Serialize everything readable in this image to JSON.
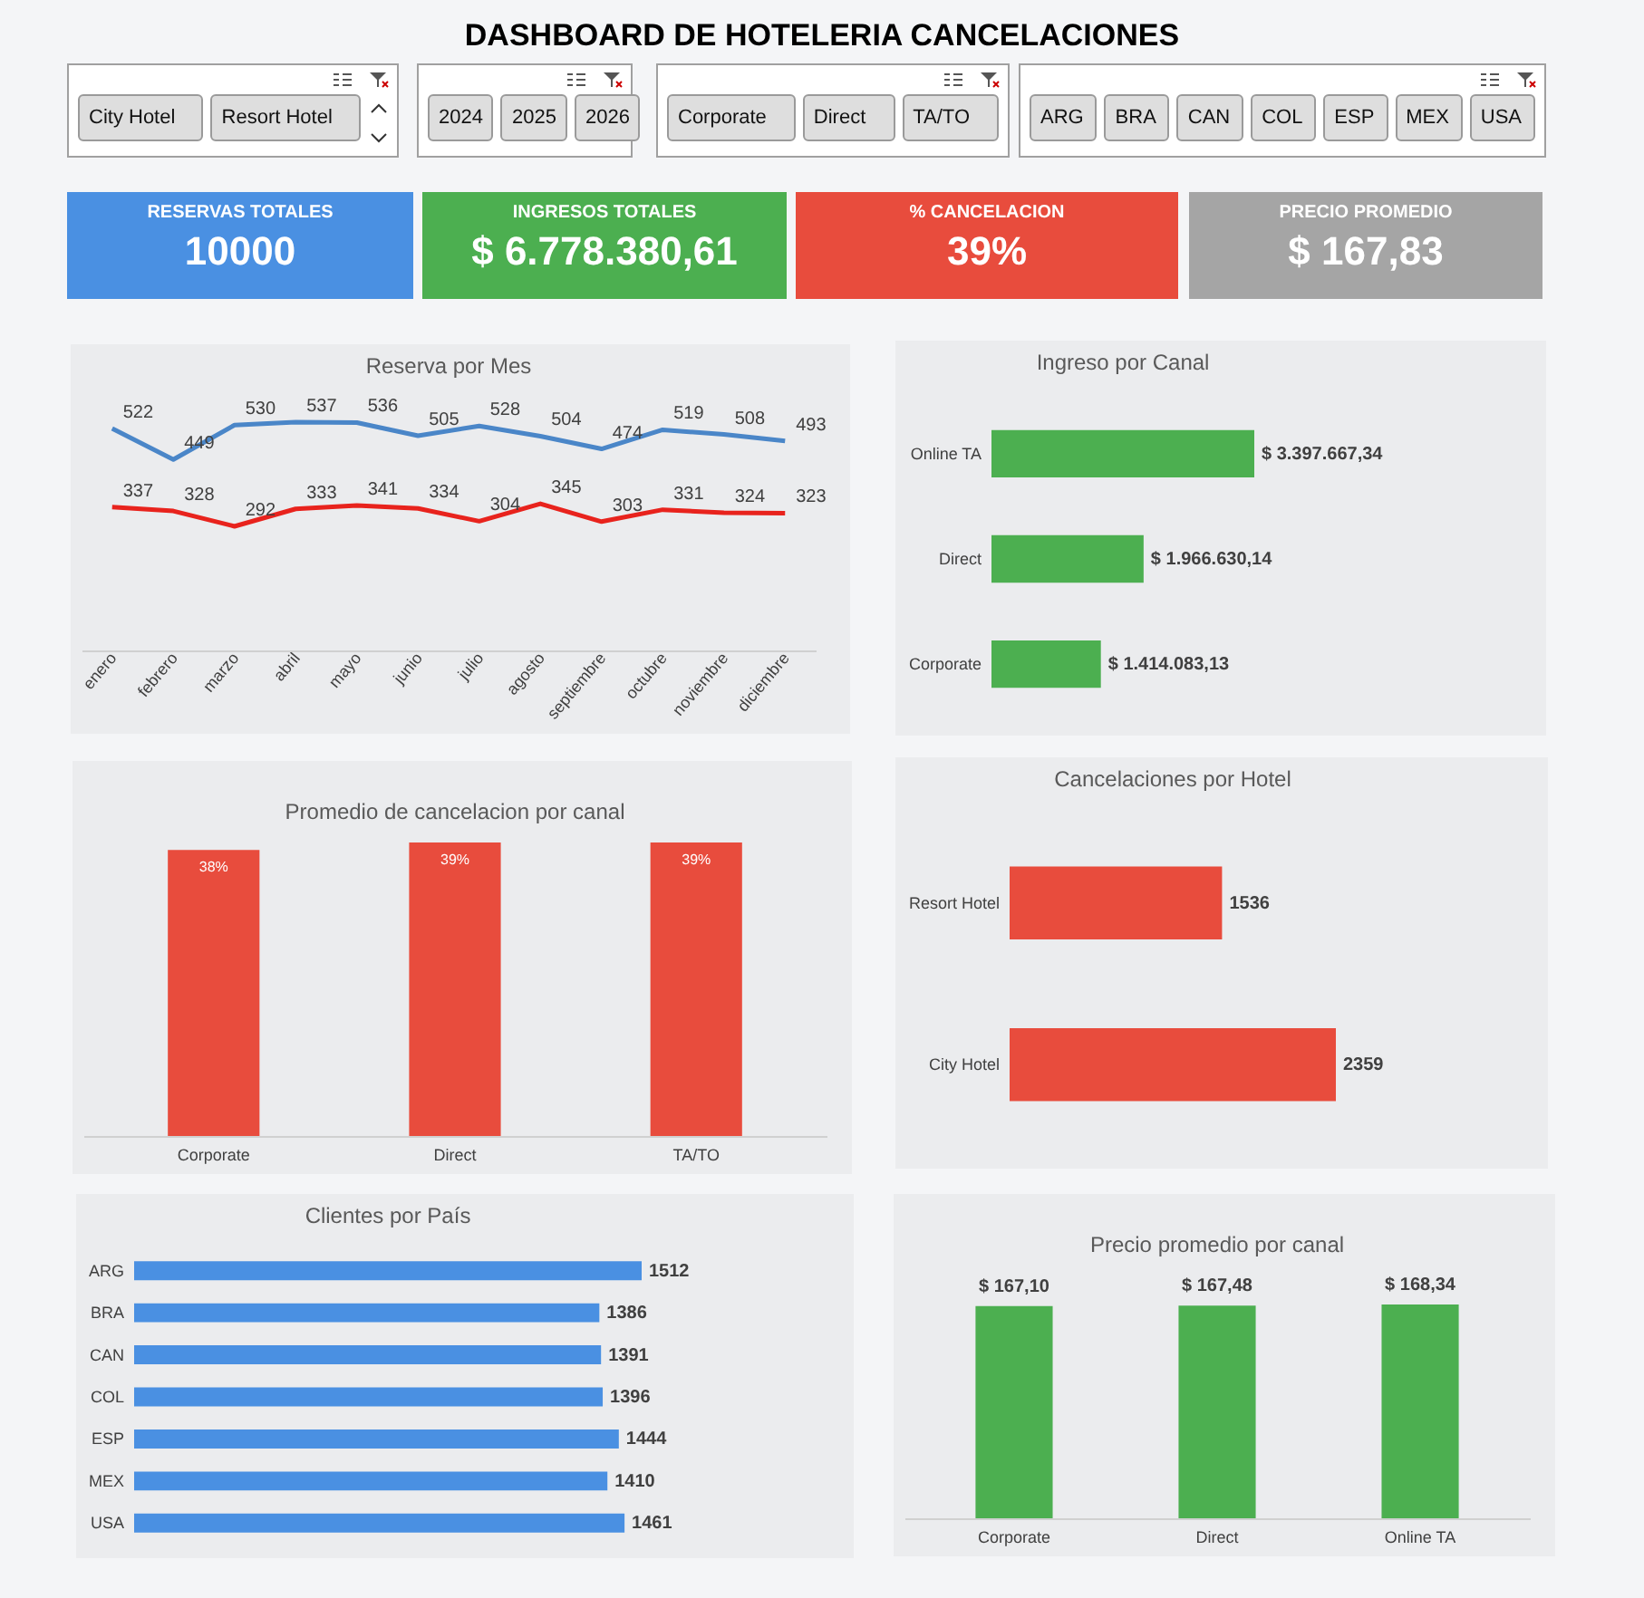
{
  "chart_data": [
    {
      "type": "other",
      "title": "DASHBOARD DE HOTELERIA CANCELACIONES"
    },
    {
      "type": "other",
      "annotations": [
        "City Hotel",
        "Resort Hotel"
      ]
    },
    {
      "type": "other",
      "annotations": [
        "2024",
        "2025",
        "2026"
      ]
    },
    {
      "type": "other",
      "annotations": [
        "Corporate",
        "Direct",
        "TA/TO"
      ]
    },
    {
      "type": "other",
      "annotations": [
        "ARG",
        "BRA",
        "CAN",
        "COL",
        "ESP",
        "MEX",
        "USA"
      ]
    },
    {
      "type": "other",
      "title": "RESERVAS TOTALES",
      "annotations": [
        "10000"
      ]
    },
    {
      "type": "other",
      "title": "INGRESOS TOTALES",
      "annotations": [
        "$ 6.778.380,61"
      ]
    },
    {
      "type": "other",
      "title": "% CANCELACION",
      "annotations": [
        "39%"
      ]
    },
    {
      "type": "other",
      "title": "PRECIO PROMEDIO",
      "annotations": [
        "$ 167,83"
      ]
    },
    {
      "type": "line",
      "title": "Reserva por Mes",
      "categories": [
        "enero",
        "febrero",
        "marzo",
        "abril",
        "mayo",
        "junio",
        "julio",
        "agosto",
        "septiembre",
        "octubre",
        "noviembre",
        "diciembre"
      ],
      "data_labels": true,
      "series": [
        {
          "color": "#4a86c8",
          "values": [
            522,
            449,
            530,
            537,
            536,
            505,
            528,
            504,
            474,
            519,
            508,
            493
          ]
        },
        {
          "color": "#e8231d",
          "values": [
            337,
            328,
            292,
            333,
            341,
            334,
            304,
            345,
            303,
            331,
            324,
            323
          ]
        }
      ]
    },
    {
      "type": "bar",
      "orientation": "horizontal",
      "title": "Ingreso por Canal",
      "categories": [
        "Online TA",
        "Direct",
        "Corporate"
      ],
      "values": [
        3397667.34,
        1966630.14,
        1414083.13
      ],
      "value_labels": [
        "$ 3.397.667,34",
        "$ 1.966.630,14",
        "$ 1.414.083,13"
      ],
      "color": "#4caf50"
    },
    {
      "type": "bar",
      "title": "Promedio de cancelacion por canal",
      "categories": [
        "Corporate",
        "Direct",
        "TA/TO"
      ],
      "values": [
        38,
        39,
        39
      ],
      "value_labels": [
        "38%",
        "39%",
        "39%"
      ],
      "color": "#e84c3d"
    },
    {
      "type": "bar",
      "orientation": "horizontal",
      "title": "Cancelaciones por Hotel",
      "categories": [
        "Resort Hotel",
        "City Hotel"
      ],
      "values": [
        1536,
        2359
      ],
      "data_labels": true,
      "color": "#e84c3d"
    },
    {
      "type": "bar",
      "orientation": "horizontal",
      "title": "Clientes por País",
      "categories": [
        "ARG",
        "BRA",
        "CAN",
        "COL",
        "ESP",
        "MEX",
        "USA"
      ],
      "values": [
        1512,
        1386,
        1391,
        1396,
        1444,
        1410,
        1461
      ],
      "data_labels": true,
      "color": "#4a90e2"
    },
    {
      "type": "bar",
      "title": "Precio promedio por  canal",
      "categories": [
        "Corporate",
        "Direct",
        "Online TA"
      ],
      "values": [
        167.1,
        167.48,
        168.34
      ],
      "value_labels": [
        "$ 167,10",
        "$ 167,48",
        "$ 168,34"
      ],
      "color": "#4caf50"
    }
  ]
}
